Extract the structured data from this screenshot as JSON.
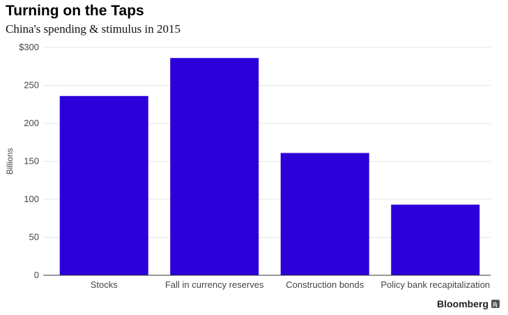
{
  "header": {
    "title": "Turning on the Taps",
    "subtitle": "China's spending & stimulus in 2015"
  },
  "branding": {
    "name": "Bloomberg",
    "icon": "bloomberg-chart-icon"
  },
  "colors": {
    "bar": "#2b00d9",
    "grid": "#e6e6e6",
    "axis": "#333333"
  },
  "chart_data": {
    "type": "bar",
    "categories": [
      "Stocks",
      "Fall in currency reserves",
      "Construction bonds",
      "Policy bank recapitalization"
    ],
    "values": [
      236,
      286,
      161,
      93
    ],
    "title": "Turning on the Taps",
    "subtitle": "China's spending & stimulus in 2015",
    "ylabel": "Billions",
    "ylim": [
      0,
      300
    ],
    "yticks": [
      0,
      50,
      100,
      150,
      200,
      250,
      300
    ],
    "ytick_labels": [
      "0",
      "50",
      "100",
      "150",
      "200",
      "250",
      "$300"
    ],
    "grid": true,
    "legend": "none"
  }
}
